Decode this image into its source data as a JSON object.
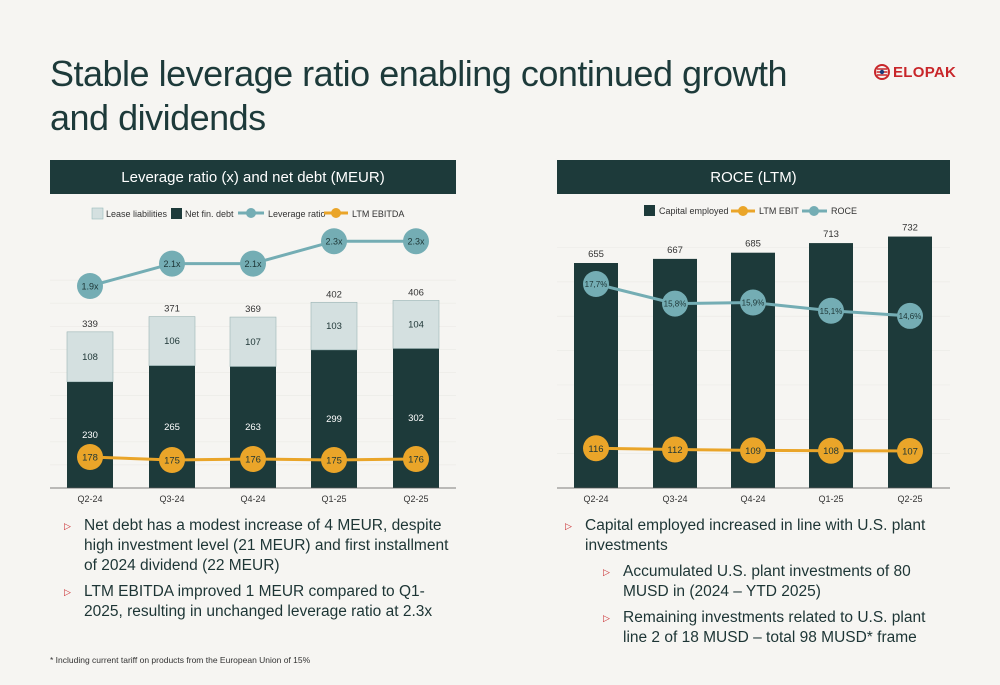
{
  "title": "Stable leverage ratio enabling continued growth and dividends",
  "logo": {
    "text": "ELOPAK",
    "icon": "elopak-logo-icon"
  },
  "colors": {
    "dark": "#1d3a3a",
    "light": "#d4e0e0",
    "teal": "#74adb4",
    "orange": "#eaa529",
    "accent_red": "#c8262a"
  },
  "left_panel": {
    "header": "Leverage ratio (x) and net debt (MEUR)",
    "bullets": [
      "Net debt has a modest increase of 4 MEUR, despite high investment level (21 MEUR) and first installment of 2024 dividend (22 MEUR)",
      "LTM EBITDA improved 1 MEUR compared to Q1-2025, resulting in unchanged leverage ratio at 2.3x"
    ]
  },
  "right_panel": {
    "header": "ROCE (LTM)",
    "bullets": [
      {
        "text": "Capital employed increased in line with U.S. plant investments",
        "sub": [
          "Accumulated U.S. plant investments of 80 MUSD in (2024 – YTD 2025)",
          "Remaining investments related to U.S. plant line 2 of 18 MUSD – total 98 MUSD* frame"
        ]
      }
    ]
  },
  "footnote": "* Including current tariff on products from the European Union of 15%",
  "chart_data": [
    {
      "type": "bar",
      "stacked": true,
      "title": "Leverage ratio (x) and net debt (MEUR)",
      "legend_position": "top",
      "categories": [
        "Q2-24",
        "Q3-24",
        "Q4-24",
        "Q1-25",
        "Q2-25"
      ],
      "series": [
        {
          "name": "Lease liabilities",
          "kind": "bar",
          "values": [
            108,
            106,
            107,
            103,
            104
          ]
        },
        {
          "name": "Net fin. debt",
          "kind": "bar",
          "values": [
            230,
            265,
            263,
            299,
            302
          ]
        },
        {
          "name": "Leverage ratio",
          "kind": "line",
          "values": [
            1.9,
            2.1,
            2.1,
            2.3,
            2.3
          ],
          "labels": [
            "1.9x",
            "2.1x",
            "2.1x",
            "2.3x",
            "2.3x"
          ]
        },
        {
          "name": "LTM EBITDA",
          "kind": "line",
          "values": [
            178,
            175,
            176,
            175,
            176
          ]
        }
      ],
      "totals": [
        339,
        371,
        369,
        402,
        406
      ]
    },
    {
      "type": "bar",
      "title": "ROCE (LTM)",
      "legend_position": "top",
      "categories": [
        "Q2-24",
        "Q3-24",
        "Q4-24",
        "Q1-25",
        "Q2-25"
      ],
      "series": [
        {
          "name": "Capital employed",
          "kind": "bar",
          "values": [
            655,
            667,
            685,
            713,
            732
          ]
        },
        {
          "name": "LTM EBIT",
          "kind": "line",
          "values": [
            116,
            112,
            109,
            108,
            107
          ]
        },
        {
          "name": "ROCE",
          "kind": "line",
          "values": [
            17.7,
            15.8,
            15.9,
            15.1,
            14.6
          ],
          "labels": [
            "17,7%",
            "15,8%",
            "15,9%",
            "15,1%",
            "14,6%"
          ]
        }
      ]
    }
  ]
}
